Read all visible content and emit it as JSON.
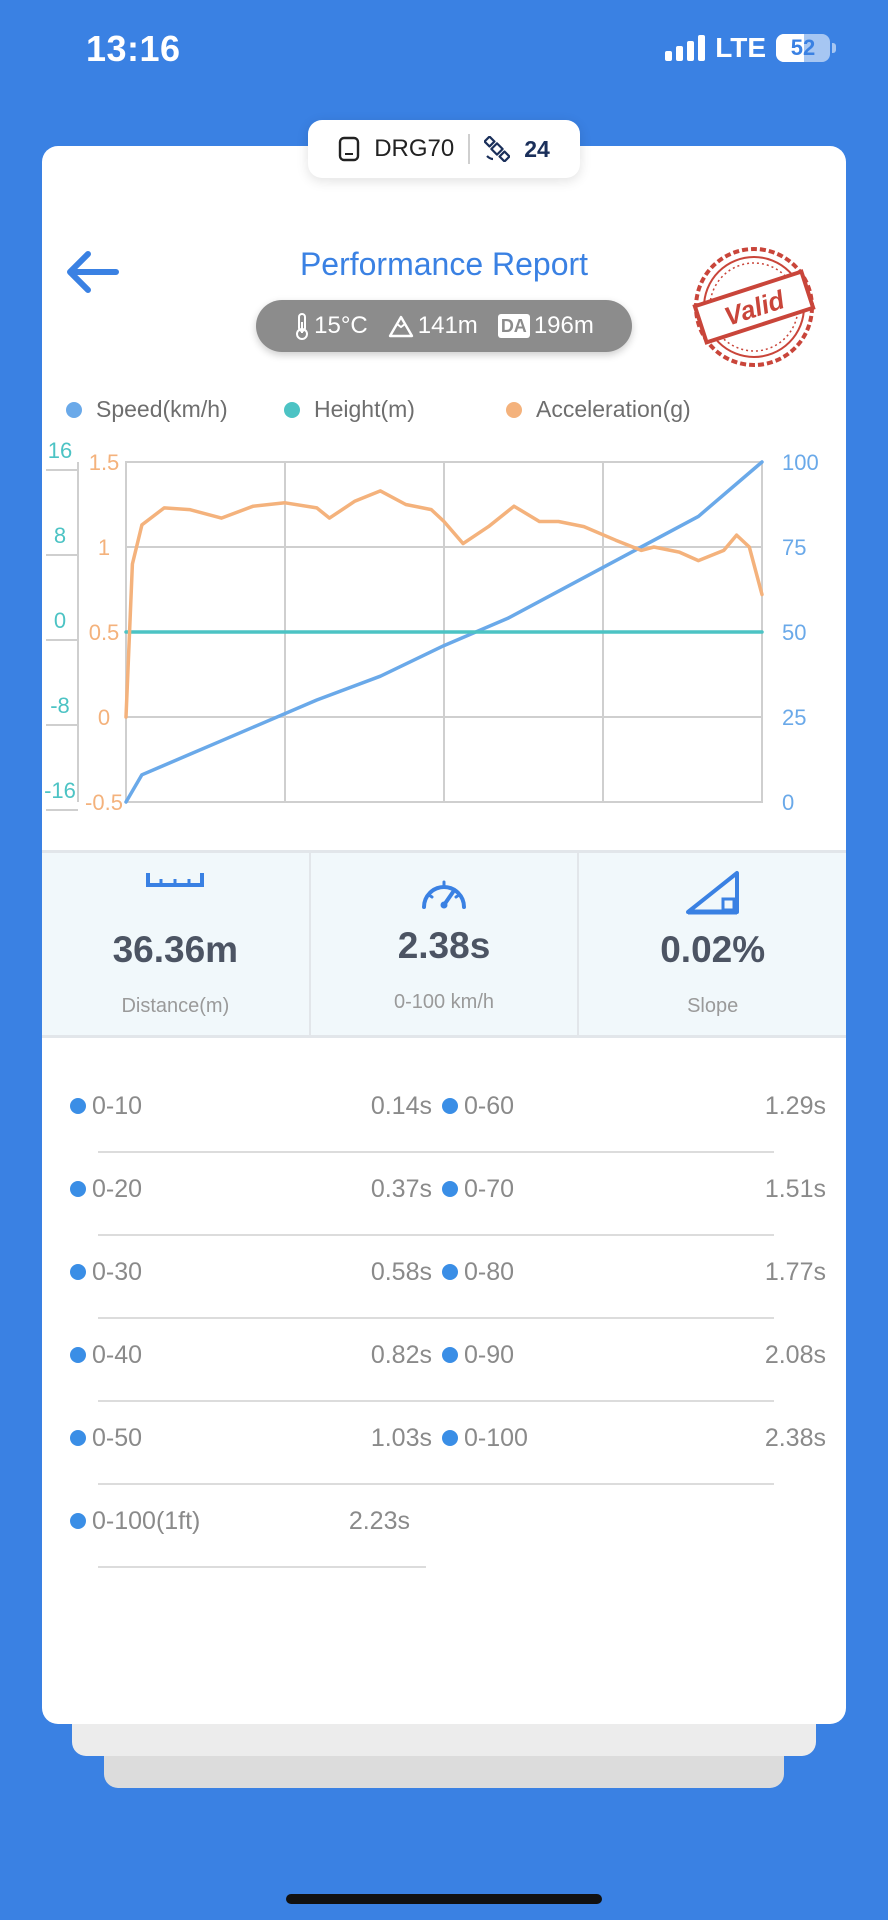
{
  "status_bar": {
    "time": "13:16",
    "network": "LTE",
    "battery": "52"
  },
  "device": {
    "name": "DRG70",
    "satellites": "24"
  },
  "header": {
    "title": "Performance Report",
    "stamp_text": "Valid",
    "conditions": {
      "temperature": "15°C",
      "altitude": "141m",
      "da_label": "DA",
      "density_altitude": "196m"
    }
  },
  "legend": [
    {
      "label": "Speed(km/h)",
      "color": "#6aa9e9"
    },
    {
      "label": "Height(m)",
      "color": "#4cc3c4"
    },
    {
      "label": "Acceleration(g)",
      "color": "#f4b27c"
    }
  ],
  "chart_data": {
    "type": "line",
    "x": [
      0,
      0.025,
      0.05,
      0.1,
      0.15,
      0.2,
      0.3,
      0.4,
      0.5,
      0.6,
      0.7,
      0.8,
      0.9,
      1.0
    ],
    "axes": {
      "height_ticks": [
        "16",
        "8",
        "0",
        "-8",
        "-16"
      ],
      "acceleration_ticks": [
        "1.5",
        "1",
        "0.5",
        "0",
        "-0.5"
      ],
      "speed_ticks": [
        "100",
        "75",
        "50",
        "25",
        "0"
      ]
    },
    "series": [
      {
        "name": "Speed(km/h)",
        "axis": "speed",
        "ylim": [
          0,
          100
        ],
        "color": "#6aa9e9",
        "points": [
          [
            0,
            0
          ],
          [
            0.025,
            8
          ],
          [
            0.05,
            10
          ],
          [
            0.1,
            14
          ],
          [
            0.15,
            18
          ],
          [
            0.2,
            22
          ],
          [
            0.3,
            30
          ],
          [
            0.4,
            37
          ],
          [
            0.5,
            46
          ],
          [
            0.6,
            54
          ],
          [
            0.7,
            64
          ],
          [
            0.8,
            74
          ],
          [
            0.9,
            84
          ],
          [
            1.0,
            100
          ]
        ]
      },
      {
        "name": "Height(m)",
        "axis": "height",
        "ylim": [
          -16,
          16
        ],
        "color": "#4cc3c4",
        "points": [
          [
            0,
            0
          ],
          [
            0.2,
            0
          ],
          [
            0.4,
            0
          ],
          [
            0.6,
            0
          ],
          [
            0.8,
            0
          ],
          [
            1.0,
            0
          ]
        ]
      },
      {
        "name": "Acceleration(g)",
        "axis": "acceleration",
        "ylim": [
          -0.5,
          1.5
        ],
        "color": "#f4b27c",
        "points": [
          [
            0,
            0
          ],
          [
            0.01,
            0.9
          ],
          [
            0.025,
            1.13
          ],
          [
            0.06,
            1.23
          ],
          [
            0.1,
            1.22
          ],
          [
            0.15,
            1.17
          ],
          [
            0.2,
            1.24
          ],
          [
            0.25,
            1.26
          ],
          [
            0.3,
            1.23
          ],
          [
            0.32,
            1.17
          ],
          [
            0.36,
            1.27
          ],
          [
            0.4,
            1.33
          ],
          [
            0.44,
            1.25
          ],
          [
            0.48,
            1.22
          ],
          [
            0.5,
            1.15
          ],
          [
            0.53,
            1.02
          ],
          [
            0.57,
            1.12
          ],
          [
            0.61,
            1.24
          ],
          [
            0.65,
            1.15
          ],
          [
            0.68,
            1.15
          ],
          [
            0.72,
            1.12
          ],
          [
            0.77,
            1.04
          ],
          [
            0.81,
            0.98
          ],
          [
            0.83,
            1.0
          ],
          [
            0.87,
            0.97
          ],
          [
            0.9,
            0.92
          ],
          [
            0.94,
            0.98
          ],
          [
            0.96,
            1.07
          ],
          [
            0.98,
            1.0
          ],
          [
            1.0,
            0.72
          ]
        ]
      }
    ]
  },
  "metrics": [
    {
      "value": "36.36m",
      "label": "Distance(m)",
      "icon": "ruler-icon"
    },
    {
      "value": "2.38s",
      "label": "0-100 km/h",
      "icon": "speedometer-icon"
    },
    {
      "value": "0.02%",
      "label": "Slope",
      "icon": "slope-icon"
    }
  ],
  "splits": {
    "left": [
      {
        "name": "0-10",
        "time": "0.14s"
      },
      {
        "name": "0-20",
        "time": "0.37s"
      },
      {
        "name": "0-30",
        "time": "0.58s"
      },
      {
        "name": "0-40",
        "time": "0.82s"
      },
      {
        "name": "0-50",
        "time": "1.03s"
      },
      {
        "name": "0-100(1ft)",
        "time": "2.23s"
      }
    ],
    "right": [
      {
        "name": "0-60",
        "time": "1.29s"
      },
      {
        "name": "0-70",
        "time": "1.51s"
      },
      {
        "name": "0-80",
        "time": "1.77s"
      },
      {
        "name": "0-90",
        "time": "2.08s"
      },
      {
        "name": "0-100",
        "time": "2.38s"
      }
    ]
  }
}
